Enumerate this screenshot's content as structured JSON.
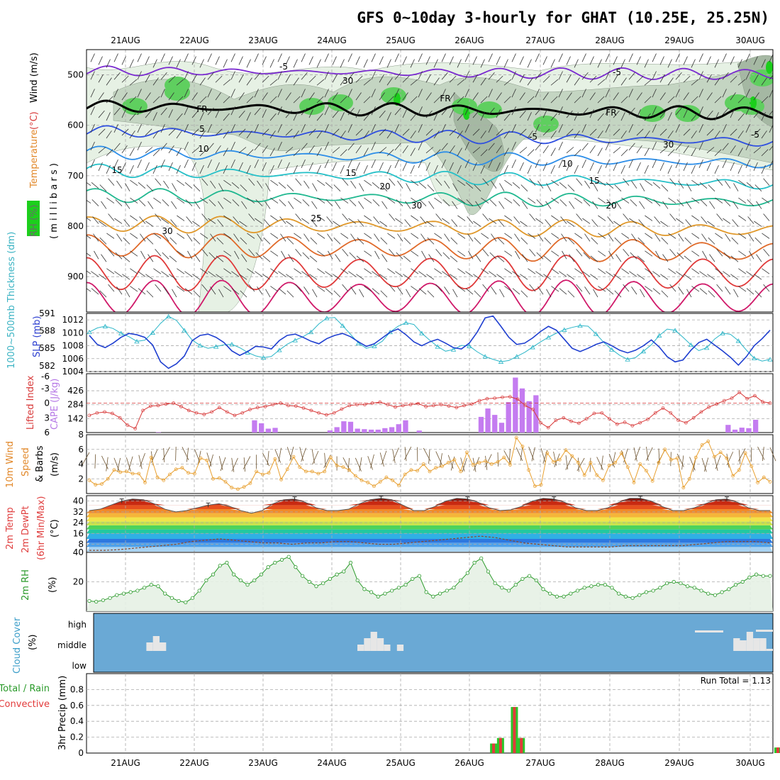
{
  "header": {
    "title": "GFS 0~10day 3-hourly for GHAT (10.25E, 25.25N)"
  },
  "colors": {
    "panel_border": "#000000",
    "grid": "#aaaaaa",
    "rh_light": "#e6f1e4",
    "rh_mid": "#c4d5c2",
    "rh_dark": "#a5b8a3",
    "rh_green": "#5fcf5f",
    "rh_bright": "#1ccf1c",
    "slp_line": "#1f3fd0",
    "thickness_line": "#2bb6c8",
    "lifted_index": "#d83a3a",
    "cape_bar": "#c47cf0",
    "wind_speed": "#e8a030",
    "wind_barb": "#6e5430",
    "rh_line": "#2a9a2a",
    "rh_fill": "#e6f1e4",
    "cloud_bg": "#6aa9d5",
    "cloud_bar": "#e6e6e6",
    "precip_total": "#2bc72b",
    "precip_conv": "#e23b3b",
    "axis_label_green": "#3a9a3a",
    "axis_label_blue": "#2d3fd0",
    "axis_label_red": "#e04040",
    "axis_label_orange": "#e2882a",
    "axis_label_cyan": "#3bb3c3",
    "axis_label_purple": "#b678e6",
    "cloud_label": "#3c9ec9"
  },
  "labels": {
    "upper": {
      "rh": "RH (%)",
      "temperature": "Temperature",
      "temp_unit": "(°C)",
      "wind": "Wind (m/s)",
      "millibars": "( m i l l i b a r s )"
    },
    "thickness": "1000~500mb Thickness (dm)",
    "slp": "SLP (mb)",
    "lifted_index": "Lifted Index",
    "cape": "CAPE (J/kg)",
    "wind10m": "10m Wind",
    "speed": "Speed",
    "speed_unit": "(m/s)",
    "barbs": "& Barbs",
    "temp2m": "2m Temp",
    "dewpt2m": "2m DewPt",
    "minmax": "(6hr Min/Max)",
    "temp_unit": "(°C)",
    "rh2m": "2m RH",
    "rh_unit": "(%)",
    "cloud_cover": "Cloud Cover",
    "cloud_unit": "(%)",
    "cloud_levels": [
      "high",
      "middle",
      "low"
    ],
    "precip_total": "Total / Rain",
    "precip_conv": "Convective",
    "precip_axis": "3hr Precip (mm)",
    "run_total": "Run Total = 1.13"
  },
  "chart_data": [
    {
      "type": "line",
      "panel": "upper-air",
      "title": "Temperature (°C), Wind (m/s), RH (%) vs pressure",
      "x_dates": [
        "21AUG",
        "22AUG",
        "23AUG",
        "24AUG",
        "25AUG",
        "26AUG",
        "27AUG",
        "28AUG",
        "29AUG",
        "30AUG"
      ],
      "yaxis": {
        "label": "(millibars)",
        "ticks": [
          500,
          600,
          700,
          800,
          900
        ],
        "ylim": [
          970,
          450
        ]
      },
      "isotherm_labels": [
        "-5",
        "-5",
        "FR",
        "FR",
        "FR",
        "-5",
        "-5",
        "10",
        "10",
        "15",
        "15",
        "15",
        "20",
        "20",
        "25",
        "30",
        "5"
      ],
      "rh_contour_labels": [
        "30",
        "30",
        "30"
      ]
    },
    {
      "type": "line",
      "panel": "slp-thickness",
      "series": [
        {
          "name": "SLP (mb)",
          "ylim": [
            1004,
            1013
          ],
          "ticks": [
            1004,
            1006,
            1008,
            1010,
            1012
          ],
          "values": [
            1009.6,
            1008.2,
            1007.7,
            1008.4,
            1009.3,
            1009.9,
            1009.7,
            1009.3,
            1008.1,
            1005.5,
            1004.5,
            1005.2,
            1006.4,
            1008.8,
            1009.6,
            1009.8,
            1009.3,
            1008.5,
            1007.2,
            1006.5,
            1007.1,
            1007.9,
            1007.8,
            1007.5,
            1008.8,
            1009.6,
            1009.8,
            1009.3,
            1008.7,
            1008.3,
            1009.1,
            1009.6,
            1009.9,
            1009.4,
            1008.6,
            1007.9,
            1008.3,
            1009.2,
            1010.1,
            1010.6,
            1009.7,
            1008.6,
            1008.0,
            1008.6,
            1009.0,
            1008.4,
            1007.7,
            1007.5,
            1008.4,
            1010.1,
            1012.3,
            1012.6,
            1011.0,
            1009.3,
            1008.2,
            1008.4,
            1009.2,
            1010.2,
            1011.0,
            1010.4,
            1009.0,
            1007.6,
            1007.1,
            1007.6,
            1008.2,
            1008.6,
            1008.0,
            1007.3,
            1006.9,
            1007.3,
            1008.0,
            1008.9,
            1007.8,
            1006.3,
            1005.5,
            1005.8,
            1007.3,
            1008.5,
            1009.0,
            1008.1,
            1007.2,
            1006.2,
            1005.0,
            1006.3,
            1008.0,
            1009.1,
            1010.4
          ]
        },
        {
          "name": "1000~500mb Thickness (dm)",
          "ylim": [
            581,
            591
          ],
          "ticks": [
            582,
            585,
            588,
            591
          ],
          "values": [
            587.8,
            588.5,
            588.8,
            588.4,
            587.6,
            587.0,
            586.2,
            586.4,
            587.7,
            589.3,
            590.5,
            589.8,
            588.1,
            586.4,
            585.5,
            585.0,
            585.3,
            585.6,
            585.7,
            585.1,
            584.3,
            583.7,
            583.4,
            583.6,
            584.7,
            585.7,
            586.4,
            587.0,
            587.8,
            589.2,
            590.2,
            590.3,
            588.9,
            587.4,
            585.9,
            585.0,
            585.4,
            586.2,
            587.8,
            588.8,
            589.4,
            589.1,
            587.6,
            586.4,
            585.3,
            584.5,
            584.8,
            585.5,
            585.4,
            584.4,
            583.6,
            583.1,
            582.7,
            582.9,
            583.6,
            584.3,
            585.2,
            586.1,
            586.9,
            587.6,
            588.2,
            588.6,
            588.9,
            588.8,
            587.5,
            586.0,
            584.8,
            583.8,
            583.1,
            583.4,
            584.5,
            585.6,
            587.2,
            588.3,
            588.1,
            586.9,
            585.6,
            584.6,
            585.1,
            586.6,
            587.6,
            587.4,
            586.3,
            584.7,
            583.3,
            582.8,
            583.1
          ]
        }
      ]
    },
    {
      "type": "bar",
      "panel": "cape-lifted-index",
      "series": [
        {
          "name": "CAPE (J/kg)",
          "ylim": [
            0,
            600
          ],
          "ticks": [
            142,
            284,
            426
          ],
          "values": [
            0,
            0,
            0,
            0,
            0,
            0,
            0,
            0,
            0,
            0,
            5,
            0,
            0,
            0,
            0,
            0,
            0,
            0,
            0,
            0,
            0,
            0,
            0,
            0,
            125,
            95,
            40,
            48,
            0,
            0,
            0,
            0,
            0,
            0,
            0,
            22,
            55,
            115,
            110,
            40,
            35,
            30,
            30,
            45,
            55,
            85,
            125,
            0,
            20,
            0,
            0,
            0,
            0,
            0,
            0,
            0,
            0,
            160,
            245,
            180,
            100,
            310,
            560,
            450,
            320,
            380,
            0,
            0,
            0,
            0,
            0,
            0,
            0,
            0,
            0,
            0,
            0,
            0,
            0,
            0,
            0,
            0,
            0,
            0,
            0,
            0,
            0,
            0,
            0,
            0,
            0,
            0,
            0,
            78,
            30,
            50,
            45,
            130,
            0,
            0
          ]
        },
        {
          "name": "Lifted Index",
          "ylim": [
            6,
            -6
          ],
          "ticks": [
            -3,
            0,
            3,
            6
          ],
          "values": [
            2.5,
            2.0,
            1.8,
            2.1,
            3.0,
            4.5,
            5.2,
            1.5,
            0.6,
            0.5,
            0.2,
            0.0,
            0.7,
            1.5,
            2.0,
            2.3,
            1.8,
            0.9,
            1.8,
            2.5,
            2.0,
            1.3,
            0.9,
            0.7,
            0.3,
            0.0,
            0.5,
            0.6,
            1.0,
            1.5,
            2.0,
            2.4,
            2.0,
            1.2,
            0.5,
            0.3,
            0.3,
            0.0,
            -0.2,
            0.3,
            0.8,
            0.5,
            0.3,
            0.1,
            0.7,
            0.5,
            0.3,
            0.6,
            0.9,
            0.5,
            0.2,
            -0.5,
            -0.9,
            -1.0,
            -1.2,
            -1.3,
            -0.8,
            0.5,
            1.3,
            4.0,
            5.0,
            3.5,
            3.0,
            3.7,
            4.1,
            3.2,
            2.1,
            2.0,
            3.2,
            4.3,
            3.9,
            4.6,
            4.0,
            3.3,
            2.0,
            1.0,
            2.0,
            3.5,
            4.0,
            3.0,
            1.8,
            0.8,
            0.2,
            -0.5,
            -1.0,
            -2.2,
            -0.9,
            -1.5,
            -0.3,
            0.0
          ]
        }
      ]
    },
    {
      "type": "line",
      "panel": "wind10m",
      "ylabel": "(m/s)",
      "ylim": [
        0,
        8
      ],
      "ticks": [
        2,
        4,
        6,
        8
      ],
      "values": [
        1.8,
        1.2,
        1.3,
        2.0,
        3.2,
        2.9,
        3.0,
        2.7,
        2.7,
        1.5,
        4.9,
        2.2,
        1.8,
        2.6,
        3.3,
        3.5,
        2.8,
        2.7,
        4.8,
        4.5,
        2.0,
        2.1,
        1.6,
        0.8,
        0.6,
        0.9,
        1.4,
        3.0,
        2.6,
        2.8,
        4.7,
        1.9,
        3.3,
        5.0,
        3.6,
        3.0,
        3.0,
        2.7,
        3.0,
        4.9,
        3.8,
        3.6,
        3.2,
        2.4,
        1.8,
        1.5,
        1.0,
        1.6,
        2.2,
        1.8,
        1.1,
        2.6,
        3.2,
        3.1,
        4.0,
        3.0,
        3.5,
        3.7,
        4.2,
        4.6,
        3.0,
        5.6,
        3.9,
        4.2,
        4.4,
        4.0,
        4.3,
        4.9,
        3.9,
        7.6,
        6.4,
        3.2,
        1.0,
        1.2,
        5.5,
        4.3,
        4.6,
        5.9,
        5.1,
        4.2,
        2.5,
        4.2,
        2.5,
        1.8,
        3.8,
        4.2,
        5.5,
        3.6,
        1.5,
        4.0,
        3.1,
        1.7,
        4.2,
        6.0,
        4.6,
        4.8,
        0.8,
        2.0,
        4.9,
        6.6,
        7.1,
        5.0,
        5.6,
        4.8,
        2.4,
        3.2,
        5.5,
        3.7,
        1.5,
        2.2,
        1.6
      ]
    },
    {
      "type": "area",
      "panel": "temp-dewpoint",
      "ylabel": "(°C)",
      "ylim": [
        2,
        44
      ],
      "ticks": [
        8,
        16,
        24,
        32,
        40
      ],
      "series": [
        {
          "name": "2m Temp",
          "values": [
            33,
            34,
            37,
            40,
            41.5,
            41,
            38,
            34,
            32,
            33,
            35,
            37,
            38,
            36,
            33,
            31,
            33,
            38,
            41,
            41.5,
            39,
            35,
            33,
            33,
            34,
            38,
            41,
            42,
            41,
            37,
            33,
            33,
            36,
            40,
            42,
            41.5,
            39,
            35,
            33,
            33.5,
            36,
            40,
            42,
            41.5,
            39,
            35,
            33,
            33,
            35,
            39,
            42,
            42,
            40,
            36,
            33,
            33,
            35,
            38,
            41,
            41.5,
            39,
            35,
            33,
            33
          ]
        },
        {
          "name": "2m DewPt",
          "values": [
            3.5,
            3.5,
            4,
            5,
            6,
            7,
            8,
            10,
            11,
            12,
            11,
            10,
            9,
            9,
            8,
            9,
            9,
            10,
            10,
            9,
            8,
            8,
            9,
            10,
            11,
            12,
            13,
            14,
            13,
            11,
            9,
            8,
            7,
            6,
            6,
            6,
            6,
            7,
            7,
            7,
            7,
            7,
            8,
            9,
            10,
            10,
            10,
            9
          ]
        }
      ]
    },
    {
      "type": "area",
      "panel": "rh2m",
      "ylabel": "(%)",
      "ylim": [
        0,
        40
      ],
      "ticks": [
        20,
        40
      ],
      "values": [
        7,
        6.5,
        7.5,
        9,
        11,
        12,
        13,
        14,
        16,
        18,
        17,
        12,
        9,
        7,
        6,
        9,
        14,
        21,
        25,
        31,
        33,
        25,
        21,
        18,
        21,
        25,
        30,
        33,
        35,
        37,
        30,
        24,
        20,
        17,
        19,
        22,
        25,
        27,
        33,
        21,
        15,
        13,
        10,
        12,
        14,
        16,
        18,
        22,
        24,
        13,
        10,
        12,
        14,
        16,
        21,
        26,
        33,
        36,
        27,
        19,
        16,
        14,
        18,
        22,
        24,
        21,
        15,
        12,
        10,
        10,
        12,
        14,
        16,
        17,
        18,
        18,
        16,
        12,
        10,
        9,
        11,
        13,
        14,
        16,
        19,
        20,
        19,
        17,
        16,
        14,
        12,
        11,
        13,
        15,
        18,
        20,
        23,
        25,
        24,
        24
      ]
    },
    {
      "type": "bar",
      "panel": "cloud-cover",
      "levels": [
        "high",
        "middle",
        "low"
      ],
      "values": [
        0,
        0,
        0,
        0,
        0,
        0,
        0,
        0,
        20,
        35,
        20,
        0,
        0,
        0,
        0,
        0,
        0,
        0,
        0,
        0,
        0,
        0,
        0,
        0,
        0,
        0,
        0,
        0,
        0,
        0,
        0,
        0,
        0,
        0,
        0,
        0,
        0,
        0,
        0,
        0,
        15,
        30,
        45,
        30,
        15,
        0,
        15,
        0,
        0,
        0,
        0,
        0,
        0,
        0,
        0,
        0,
        0,
        0,
        0,
        0,
        0,
        0,
        0,
        0,
        0,
        0,
        0,
        0,
        0,
        0,
        0,
        0,
        0,
        0,
        0,
        0,
        0,
        0,
        0,
        0,
        0,
        0,
        0,
        0,
        0,
        0,
        0,
        0,
        0,
        0,
        0,
        0,
        0,
        0,
        0,
        0,
        0,
        30,
        25,
        45,
        30,
        30,
        5
      ]
    },
    {
      "type": "bar",
      "panel": "precipitation",
      "ylabel": "3hr Precip (mm)",
      "ylim": [
        0,
        1.0
      ],
      "ticks": [
        0,
        0.2,
        0.4,
        0.6,
        0.8
      ],
      "series": [
        {
          "name": "Total / Rain",
          "values": [
            0.12,
            0.19,
            0,
            0.58,
            0.19,
            0.07
          ]
        },
        {
          "name": "Convective",
          "values": [
            0.12,
            0.19,
            0,
            0.58,
            0.19,
            0.07
          ]
        }
      ],
      "x_index": [
        58,
        59,
        60,
        61,
        62,
        99
      ],
      "run_total": 1.13
    }
  ]
}
